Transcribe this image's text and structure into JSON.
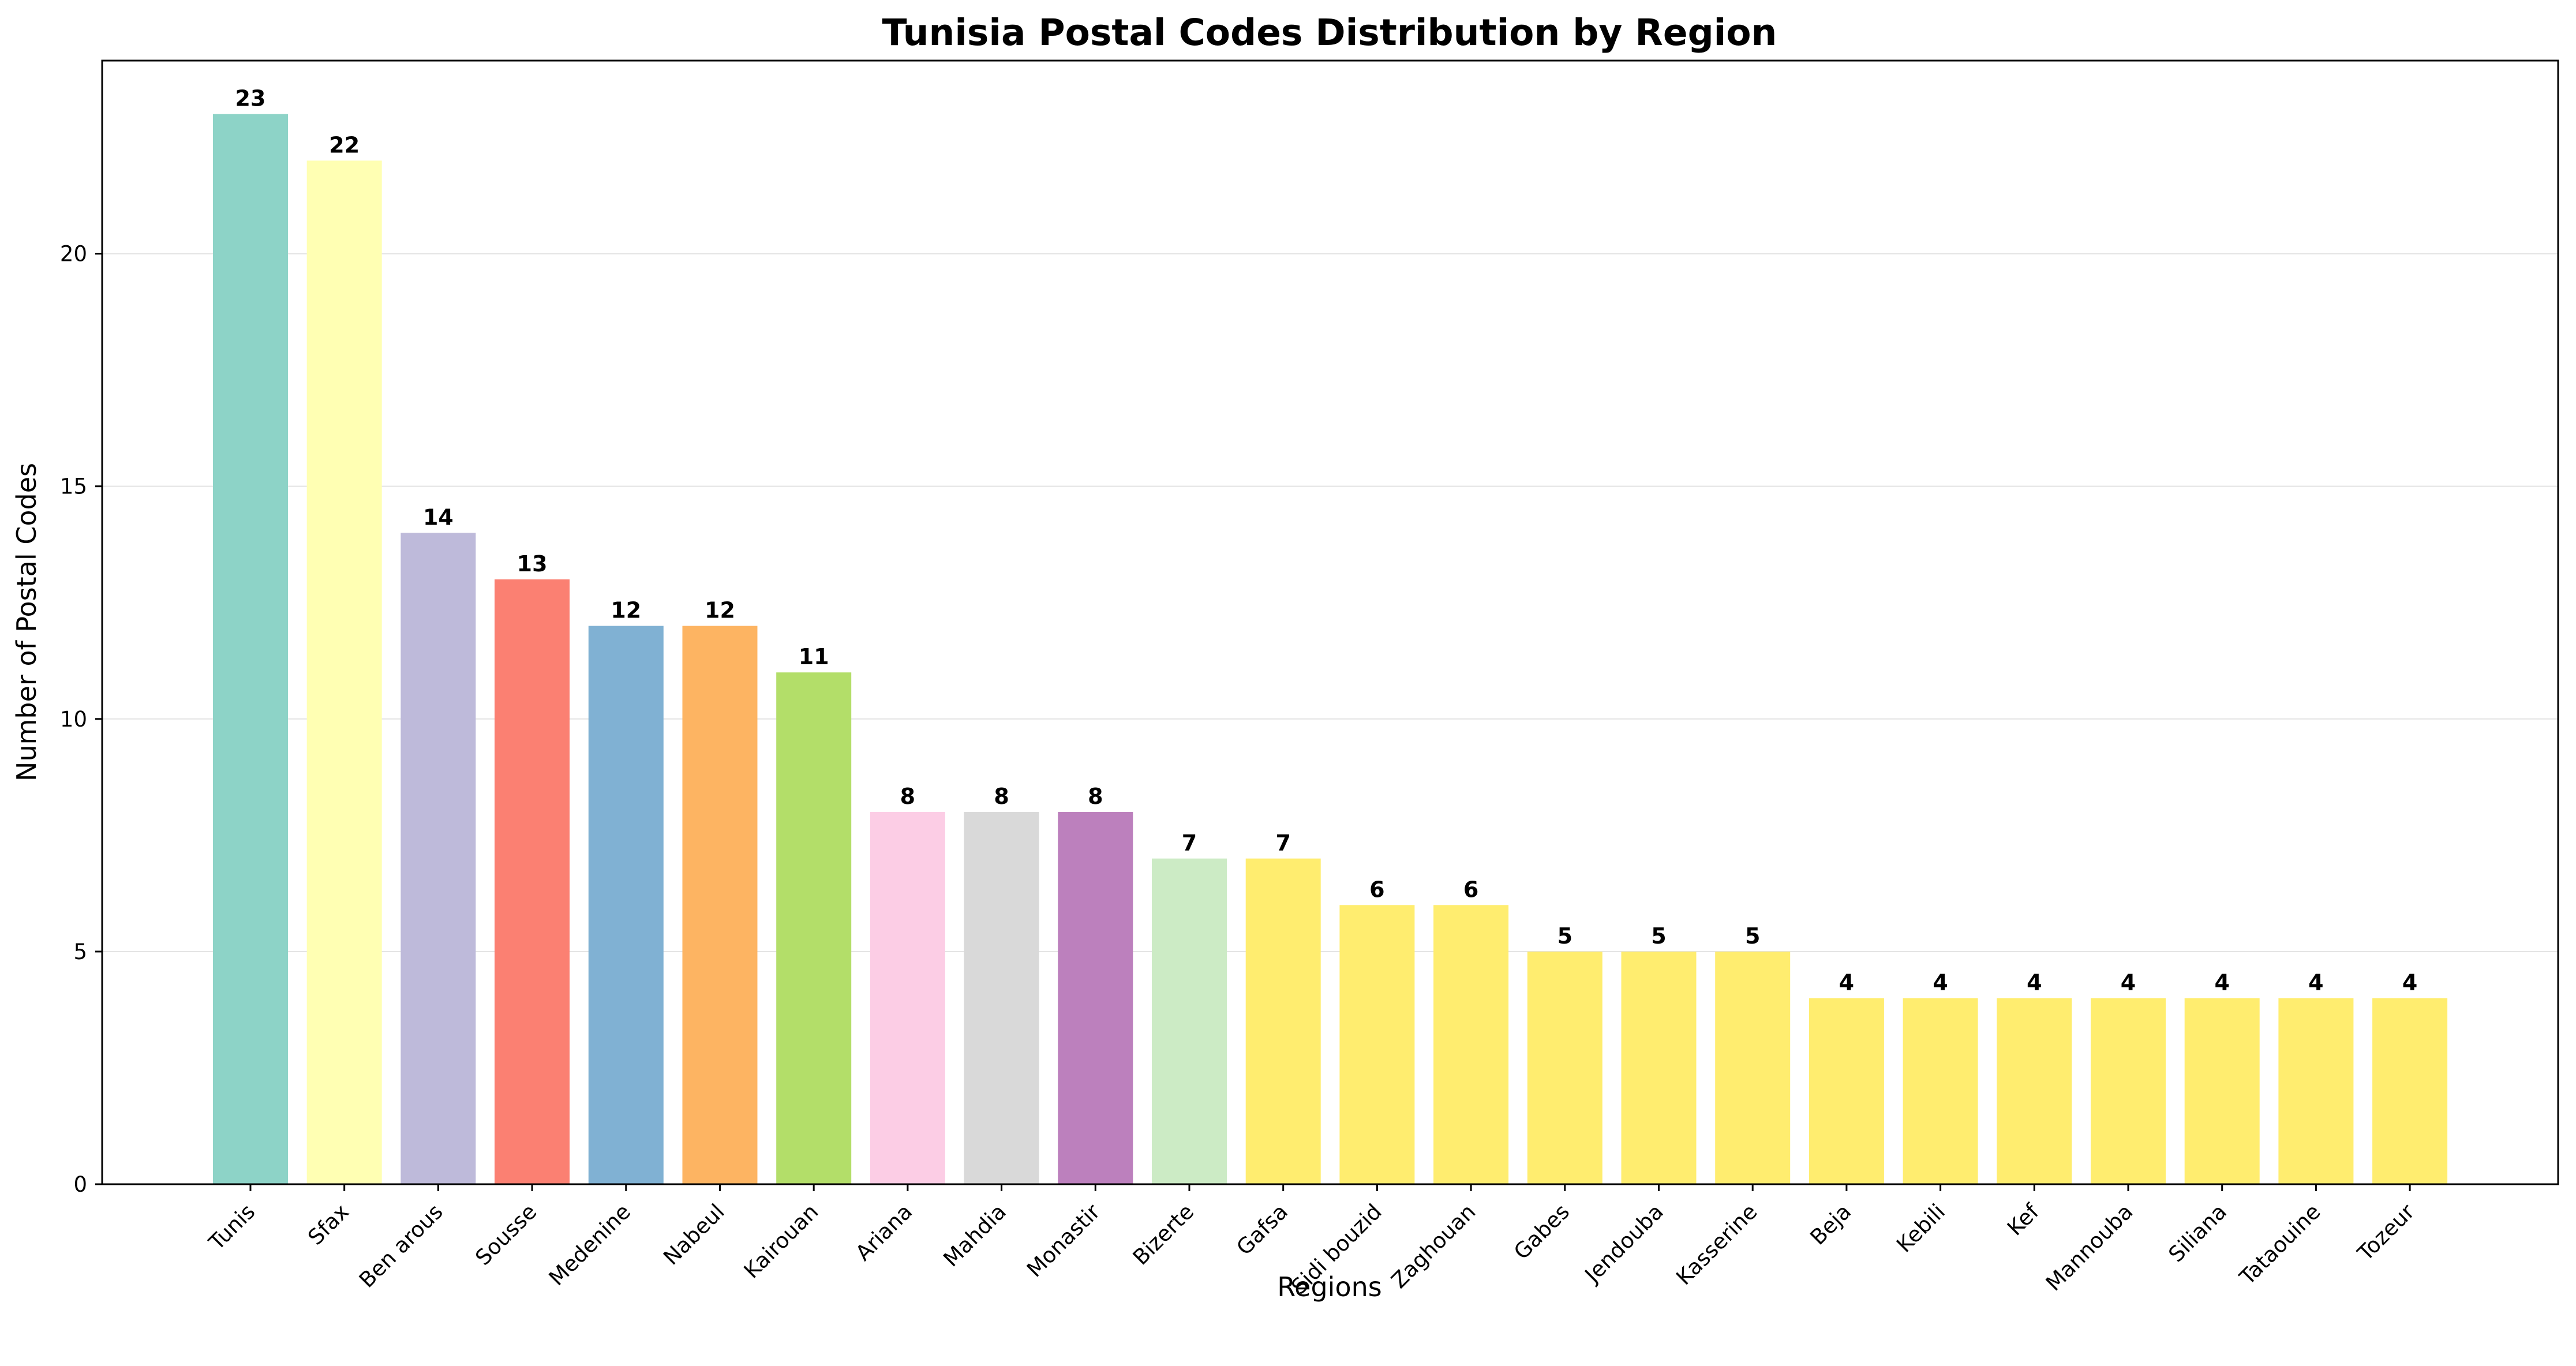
{
  "chart_data": {
    "type": "bar",
    "title": "Tunisia Postal Codes Distribution by Region",
    "xlabel": "Regions",
    "ylabel": "Number of Postal Codes",
    "ylim": [
      0,
      24.15
    ],
    "yticks": [
      0,
      5,
      10,
      15,
      20
    ],
    "grid": "y",
    "categories": [
      "Tunis",
      "Sfax",
      "Ben arous",
      "Sousse",
      "Medenine",
      "Nabeul",
      "Kairouan",
      "Ariana",
      "Mahdia",
      "Monastir",
      "Bizerte",
      "Gafsa",
      "Sidi bouzid",
      "Zaghouan",
      "Gabes",
      "Jendouba",
      "Kasserine",
      "Beja",
      "Kebili",
      "Kef",
      "Mannouba",
      "Siliana",
      "Tataouine",
      "Tozeur"
    ],
    "values": [
      23,
      22,
      14,
      13,
      12,
      12,
      11,
      8,
      8,
      8,
      7,
      7,
      6,
      6,
      5,
      5,
      5,
      4,
      4,
      4,
      4,
      4,
      4,
      4
    ],
    "colors": [
      "#8dd3c7",
      "#ffffb3",
      "#bebada",
      "#fb8072",
      "#80b1d3",
      "#fdb462",
      "#b3de69",
      "#fccde5",
      "#d9d9d9",
      "#bc80bd",
      "#ccebc5",
      "#ffed6f",
      "#ffed6f",
      "#ffed6f",
      "#ffed6f",
      "#ffed6f",
      "#ffed6f",
      "#ffed6f",
      "#ffed6f",
      "#ffed6f",
      "#ffed6f",
      "#ffed6f",
      "#ffed6f",
      "#ffed6f"
    ]
  }
}
